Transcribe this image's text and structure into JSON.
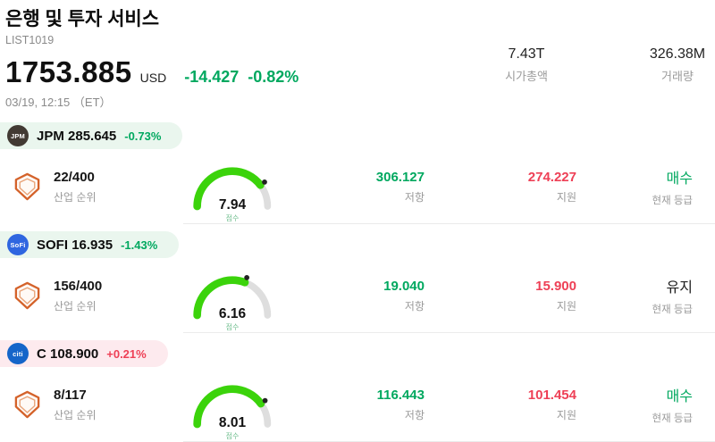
{
  "page": {
    "title": "은행 및 투자 서비스",
    "subtitle": "LIST1019"
  },
  "quote": {
    "price": "1753.885",
    "currency": "USD",
    "change": "-14.427",
    "change_pct": "-0.82%",
    "change_color": "#00a85f",
    "datetime": "03/19, 12:15 （ET）"
  },
  "stats": {
    "market_cap": {
      "value": "7.43T",
      "label": "시가총액"
    },
    "volume": {
      "value": "326.38M",
      "label": "거래량"
    }
  },
  "colors": {
    "green": "#00a85f",
    "red": "#ee4056",
    "gauge_green": "#3bd30b",
    "gauge_track": "#dedede",
    "pill_green": "#eaf6ee",
    "pill_red": "#fdeaee"
  },
  "stocks": [
    {
      "ticker": "JPM",
      "price": "285.645",
      "change": "-0.73%",
      "change_color": "#00a85f",
      "pill_bg": "#eaf6ee",
      "logo_text": "JPM",
      "logo_bg": "#423a33",
      "rank": "22/400",
      "rank_label": "산업 순위",
      "score": 7.94,
      "score_label": "점수",
      "resistance": "306.127",
      "resistance_label": "저항",
      "support": "274.227",
      "support_label": "지원",
      "rating": "매수",
      "rating_color": "#00a85f",
      "rating_label": "현재 등급"
    },
    {
      "ticker": "SOFI",
      "price": "16.935",
      "change": "-1.43%",
      "change_color": "#00a85f",
      "pill_bg": "#eaf6ee",
      "logo_text": "SoFi",
      "logo_bg": "#2f66e0",
      "rank": "156/400",
      "rank_label": "산업 순위",
      "score": 6.16,
      "score_label": "점수",
      "resistance": "19.040",
      "resistance_label": "저항",
      "support": "15.900",
      "support_label": "지원",
      "rating": "유지",
      "rating_color": "#222222",
      "rating_label": "현재 등급"
    },
    {
      "ticker": "C",
      "price": "108.900",
      "change": "+0.21%",
      "change_color": "#ee4056",
      "pill_bg": "#fdeaee",
      "logo_text": "citi",
      "logo_bg": "#1565c9",
      "rank": "8/117",
      "rank_label": "산업 순위",
      "score": 8.01,
      "score_label": "점수",
      "resistance": "116.443",
      "resistance_label": "저항",
      "support": "101.454",
      "support_label": "지원",
      "rating": "매수",
      "rating_color": "#00a85f",
      "rating_label": "현재 등급"
    }
  ]
}
